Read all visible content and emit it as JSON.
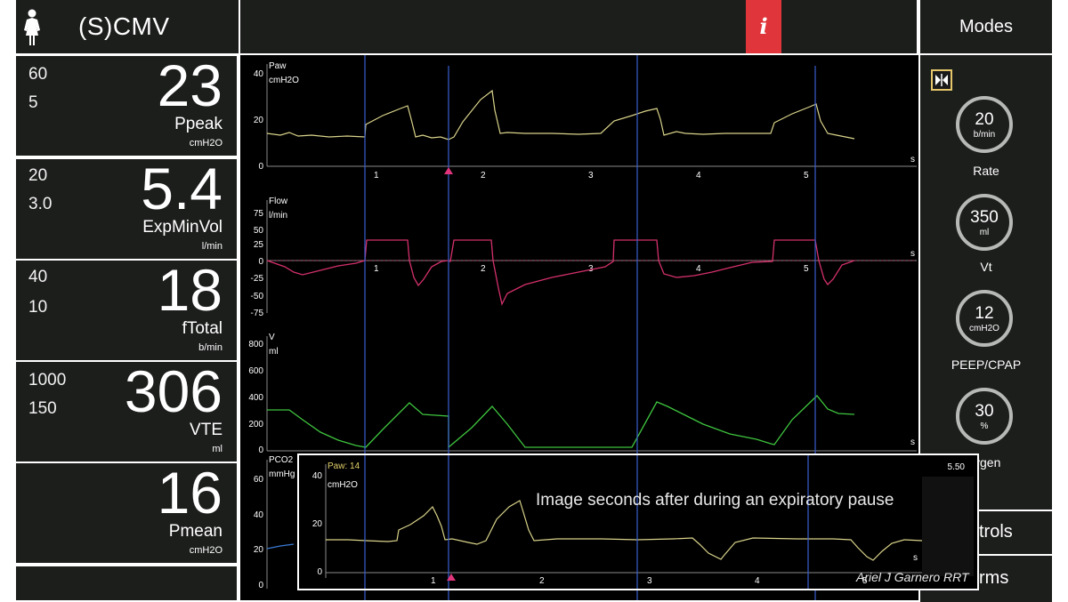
{
  "header": {
    "mode": "(S)CMV",
    "info_label": "i",
    "modes_label": "Modes"
  },
  "params": [
    {
      "lim_high": "60",
      "lim_low": "5",
      "value": "23",
      "name": "Ppeak",
      "unit": "cmH2O"
    },
    {
      "lim_high": "20",
      "lim_low": "3.0",
      "value": "5.4",
      "name": "ExpMinVol",
      "unit": "l/min"
    },
    {
      "lim_high": "40",
      "lim_low": "10",
      "value": "18",
      "name": "fTotal",
      "unit": "b/min"
    },
    {
      "lim_high": "1000",
      "lim_low": "150",
      "value": "306",
      "name": "VTE",
      "unit": "ml"
    },
    {
      "lim_high": "",
      "lim_low": "",
      "value": "16",
      "name": "Pmean",
      "unit": "cmH2O"
    }
  ],
  "controls": [
    {
      "value": "20",
      "unit": "b/min",
      "label": "Rate"
    },
    {
      "value": "350",
      "unit": "ml",
      "label": "Vt"
    },
    {
      "value": "12",
      "unit": "cmH2O",
      "label": "PEEP/CPAP"
    },
    {
      "value": "30",
      "unit": "%",
      "label": "ygen"
    }
  ],
  "side_buttons": {
    "controls_label": "trols",
    "alarms_label": "rms"
  },
  "waveforms": {
    "time_unit": "s",
    "time_ticks": [
      "1",
      "2",
      "3",
      "4",
      "5"
    ],
    "paw": {
      "title": "Paw",
      "unit": "cmH2O",
      "ticks": [
        "40",
        "20",
        "0"
      ]
    },
    "flow": {
      "title": "Flow",
      "unit": "l/min",
      "ticks": [
        "75",
        "50",
        "25",
        "0",
        "-25",
        "-50",
        "-75"
      ]
    },
    "volume": {
      "title": "V",
      "unit": "ml",
      "ticks": [
        "800",
        "600",
        "400",
        "200",
        "0"
      ]
    },
    "pco2": {
      "title": "PCO2",
      "unit": "mmHg",
      "ticks": [
        "60",
        "40",
        "20",
        "0"
      ]
    }
  },
  "inset": {
    "paw_readout": "Paw: 14",
    "unit": "cmH2O",
    "ticks": [
      "40",
      "20",
      "0"
    ],
    "time_value": "5.50",
    "time_ticks": [
      "1",
      "2",
      "3",
      "4",
      "5"
    ],
    "time_unit": "s",
    "note": "Image seconds after during an expiratory pause",
    "signature": "Ariel J Garnero RRT"
  },
  "colors": {
    "paw_trace": "#d9d38a",
    "flow_trace": "#d4306b",
    "volume_trace": "#3ec43e",
    "pco2_trace": "#3a7bd5",
    "cursor_line": "#3a5fd0",
    "info_bg": "#e0353a"
  }
}
